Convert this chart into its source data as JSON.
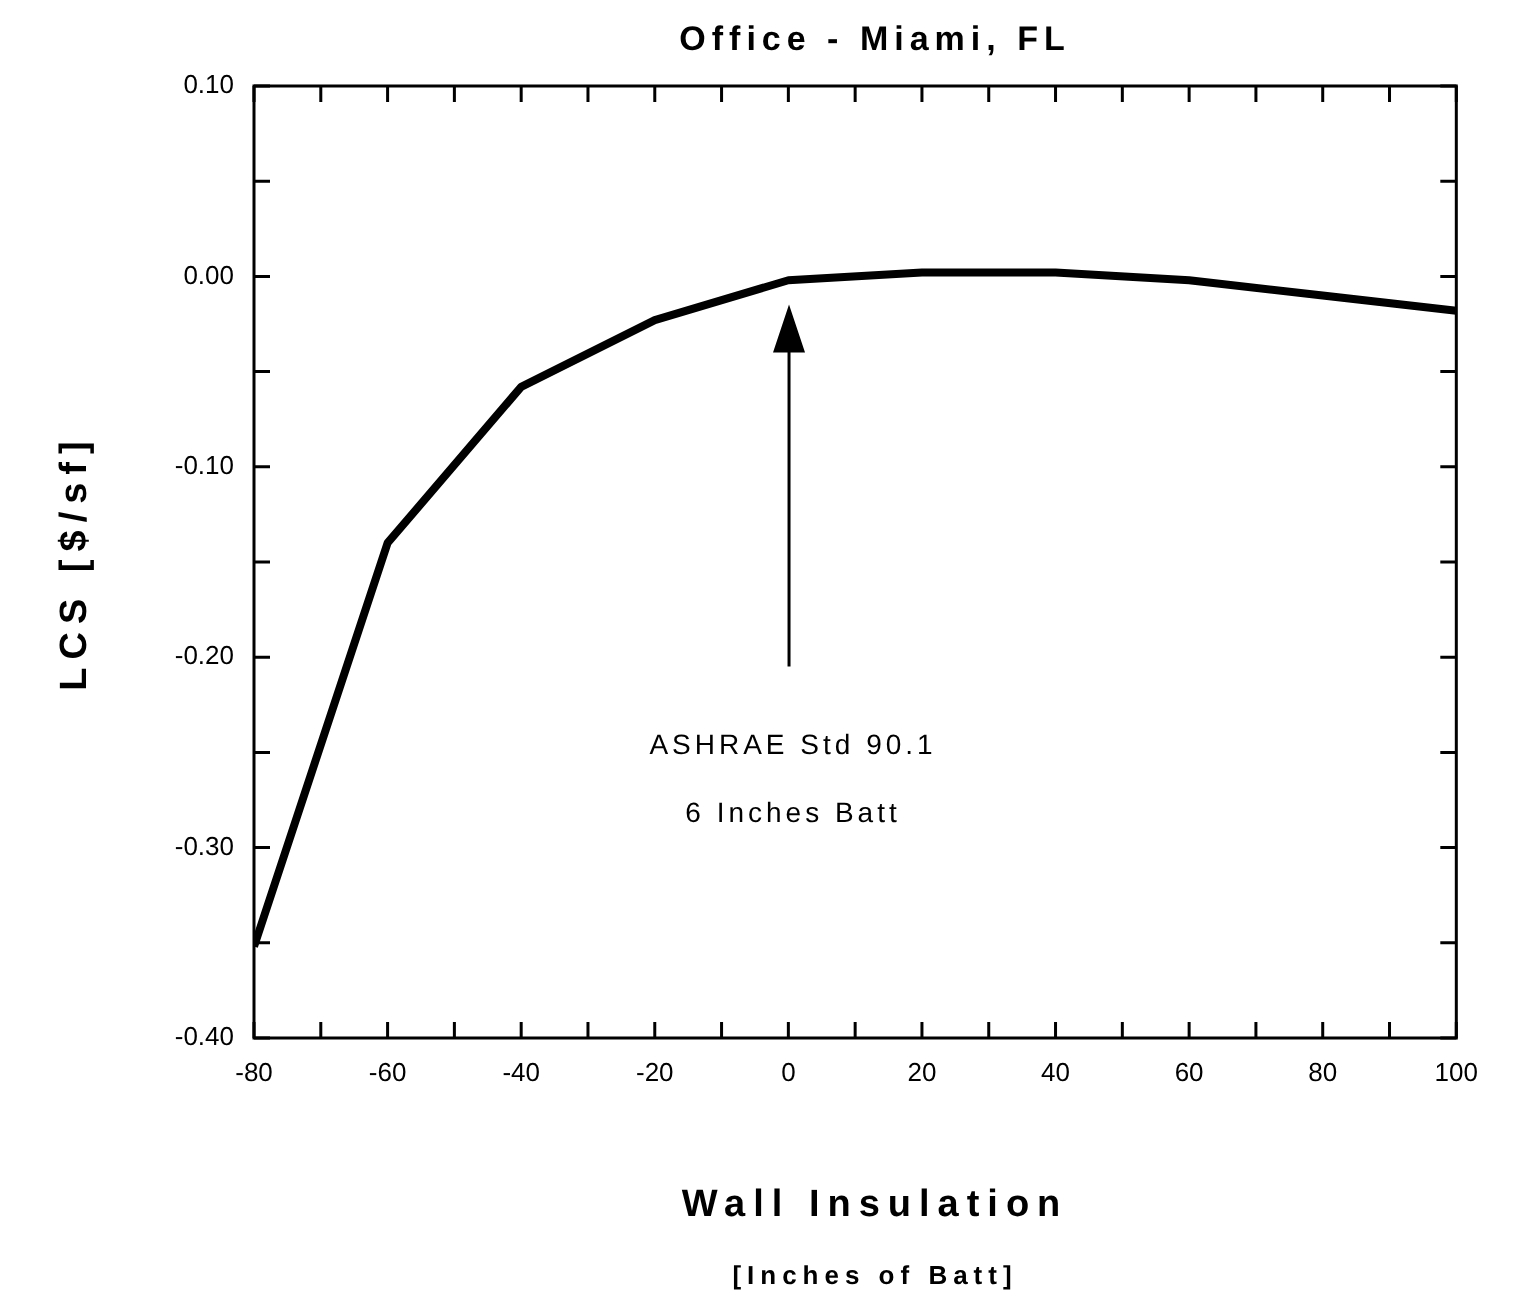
{
  "chart_data": {
    "type": "line",
    "title": "Office - Miami, FL",
    "xlabel": "Wall Insulation",
    "subtitle": "[Inches of Batt]",
    "ylabel": "LCS  [$/sf]",
    "x": [
      -80,
      -60,
      -40,
      -20,
      0,
      20,
      40,
      60,
      80,
      100
    ],
    "series": [
      {
        "color": "#000000",
        "values": [
          -0.352,
          -0.14,
          -0.058,
          -0.023,
          -0.002,
          0.002,
          0.002,
          -0.002,
          -0.01,
          -0.018
        ]
      }
    ],
    "xlim": [
      -80,
      100
    ],
    "xticks": [
      -80,
      {
        "value": -70,
        "label": null
      },
      -60,
      {
        "value": -50,
        "label": null
      },
      -40,
      {
        "value": -30,
        "label": null
      },
      -20,
      {
        "value": -10,
        "label": null
      },
      0,
      {
        "value": 10,
        "label": null
      },
      20,
      {
        "value": 30,
        "label": null
      },
      40,
      {
        "value": 50,
        "label": null
      },
      60,
      {
        "value": 70,
        "label": null
      },
      80,
      {
        "value": 90,
        "label": null
      },
      100
    ],
    "ylim": [
      -0.4,
      0.1
    ],
    "yticks": [
      {
        "value": -0.4,
        "label": "-0.40"
      },
      {
        "value": -0.35,
        "label": null
      },
      {
        "value": -0.3,
        "label": "-0.30"
      },
      {
        "value": -0.25,
        "label": null
      },
      {
        "value": -0.2,
        "label": "-0.20"
      },
      {
        "value": -0.15,
        "label": null
      },
      {
        "value": -0.1,
        "label": "-0.10"
      },
      {
        "value": -0.05,
        "label": null
      },
      {
        "value": 0,
        "label": "0.00"
      },
      {
        "value": 0.05,
        "label": null
      },
      {
        "value": 0.1,
        "label": "0.10"
      }
    ],
    "annotations": [
      "ASHRAE Std 90.1",
      "6 Inches Batt"
    ],
    "grid": false,
    "legend": false,
    "marker": "none",
    "line_style": "solid"
  }
}
